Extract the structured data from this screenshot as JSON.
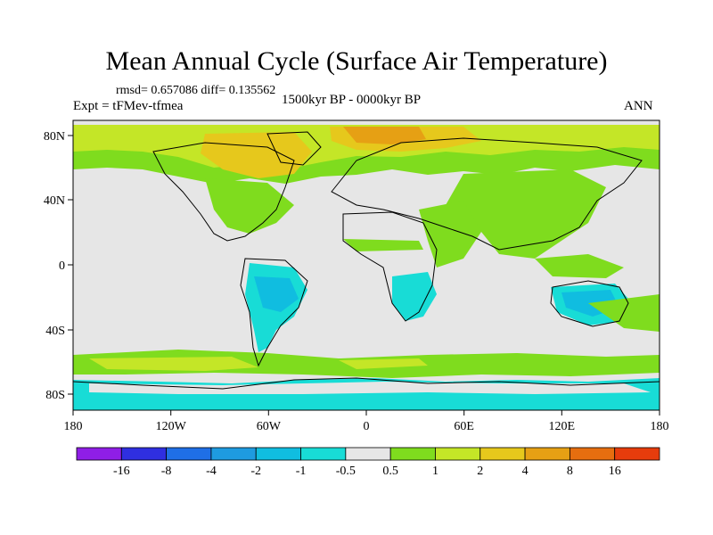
{
  "title": "Mean Annual Cycle (Surface Air Temperature)",
  "stats": "rmsd= 0.657086 diff= 0.135562",
  "experiment": "Expt = tFMev-tfmea",
  "period": "1500kyr BP - 0000kyr BP",
  "season": "ANN",
  "x_ticks": [
    "180",
    "120W",
    "60W",
    "0",
    "60E",
    "120E",
    "180"
  ],
  "y_ticks": [
    "80N",
    "40N",
    "0",
    "40S",
    "80S"
  ],
  "colorbar": {
    "colors": [
      "#8f1ee6",
      "#2f2fe0",
      "#1f6fe6",
      "#1e9be0",
      "#10bde0",
      "#18dcd6",
      "#e6e6e6",
      "#7fdc1e",
      "#c4e627",
      "#e6c81c",
      "#e6a014",
      "#e66e0f",
      "#e63c0c"
    ],
    "labels": [
      "-16",
      "-8",
      "-4",
      "-2",
      "-1",
      "-0.5",
      "0.5",
      "1",
      "2",
      "4",
      "8",
      "16"
    ]
  },
  "palette": {
    "neutral": "#e6e6e6",
    "green": "#7fdc1e",
    "yellowgreen": "#c4e627",
    "gold": "#e6c81c",
    "orange": "#e6a014",
    "cyan": "#18dcd6",
    "blue": "#10bde0"
  }
}
